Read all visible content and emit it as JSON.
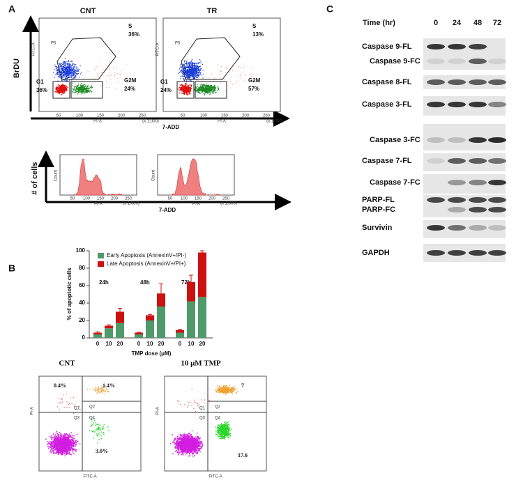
{
  "panel_labels": [
    "A",
    "B",
    "C"
  ],
  "panel_a": {
    "y_axis_label": "BrDU",
    "x_axis_label": "7-ADD",
    "plots": [
      {
        "title": "CNT",
        "gate": "P5",
        "s": "S",
        "s_pct": "36%",
        "g1": "G1",
        "g1_pct": "36%",
        "g2m": "G2M",
        "g2m_pct": "24%",
        "y_label": "FITC-A",
        "x_label": "PI-A"
      },
      {
        "title": "TR",
        "gate": "P5",
        "s": "S",
        "s_pct": "13%",
        "g1": "G1",
        "g1_pct": "24%",
        "g2m": "G2M",
        "g2m_pct": "57%",
        "y_label": "FITC-A",
        "x_label": "PI-A"
      }
    ],
    "x_ticks": [
      "50",
      "100",
      "150",
      "200",
      "250"
    ],
    "x_unit": "(x 1,000)",
    "histograms": {
      "y_axis_label": "# of cells",
      "x_axis_label": "7-ADD",
      "plot_y_label": "Count",
      "plot_x_label": "PI-A"
    }
  },
  "chart_data": {
    "type": "bar",
    "stacked": true,
    "y_label": "% of apoptotic cells",
    "x_label": "TMP dose (μM)",
    "categories": [
      "0",
      "10",
      "20",
      "0",
      "10",
      "20",
      "0",
      "10",
      "20"
    ],
    "groups": [
      "24h",
      "48h",
      "72h"
    ],
    "series": [
      {
        "name": "Early Apoptosis (AnnexinV+/PI-)",
        "color": "#4f9a6b",
        "values": [
          4,
          11,
          17,
          4,
          20,
          36,
          6,
          42,
          47
        ]
      },
      {
        "name": "Late Apoptosis (AnnexinV+/PI+)",
        "color": "#cc1111",
        "values": [
          2,
          3,
          13,
          2,
          6,
          15,
          3,
          22,
          51
        ],
        "errors": [
          1,
          1,
          4,
          0.5,
          1,
          11,
          1,
          8,
          2
        ]
      }
    ],
    "ylim": [
      0,
      100
    ],
    "yticks": [
      0,
      20,
      40,
      60,
      80,
      100
    ],
    "legend": "upper left"
  },
  "panel_b_flow": {
    "plots": [
      {
        "title": "CNT",
        "q1": "0.4%",
        "q2": "1.4%",
        "q4": "3.0%",
        "quadrants": [
          "Q1",
          "Q2",
          "Q3",
          "Q4"
        ],
        "y_label": "PI-A",
        "x_label": "FITC-A"
      },
      {
        "title": "10 μM TMP",
        "q2": "7",
        "q4": "17.6",
        "quadrants": [
          "Q1",
          "Q2",
          "Q3",
          "Q4"
        ],
        "y_label": "PI-A",
        "x_label": "FITC-A"
      }
    ]
  },
  "panel_c": {
    "time_label": "Time (hr)",
    "times": [
      "0",
      "24",
      "48",
      "72"
    ],
    "rows": [
      "Caspase 9-FL",
      "Caspase 9-FC",
      "Caspase 8-FL",
      "Caspase 3-FL",
      "Caspase 3-FC",
      "Caspase 7-FL",
      "Caspase 7-FC",
      "PARP-FL",
      "PARP-FC",
      "Survivin",
      "GAPDH"
    ]
  }
}
